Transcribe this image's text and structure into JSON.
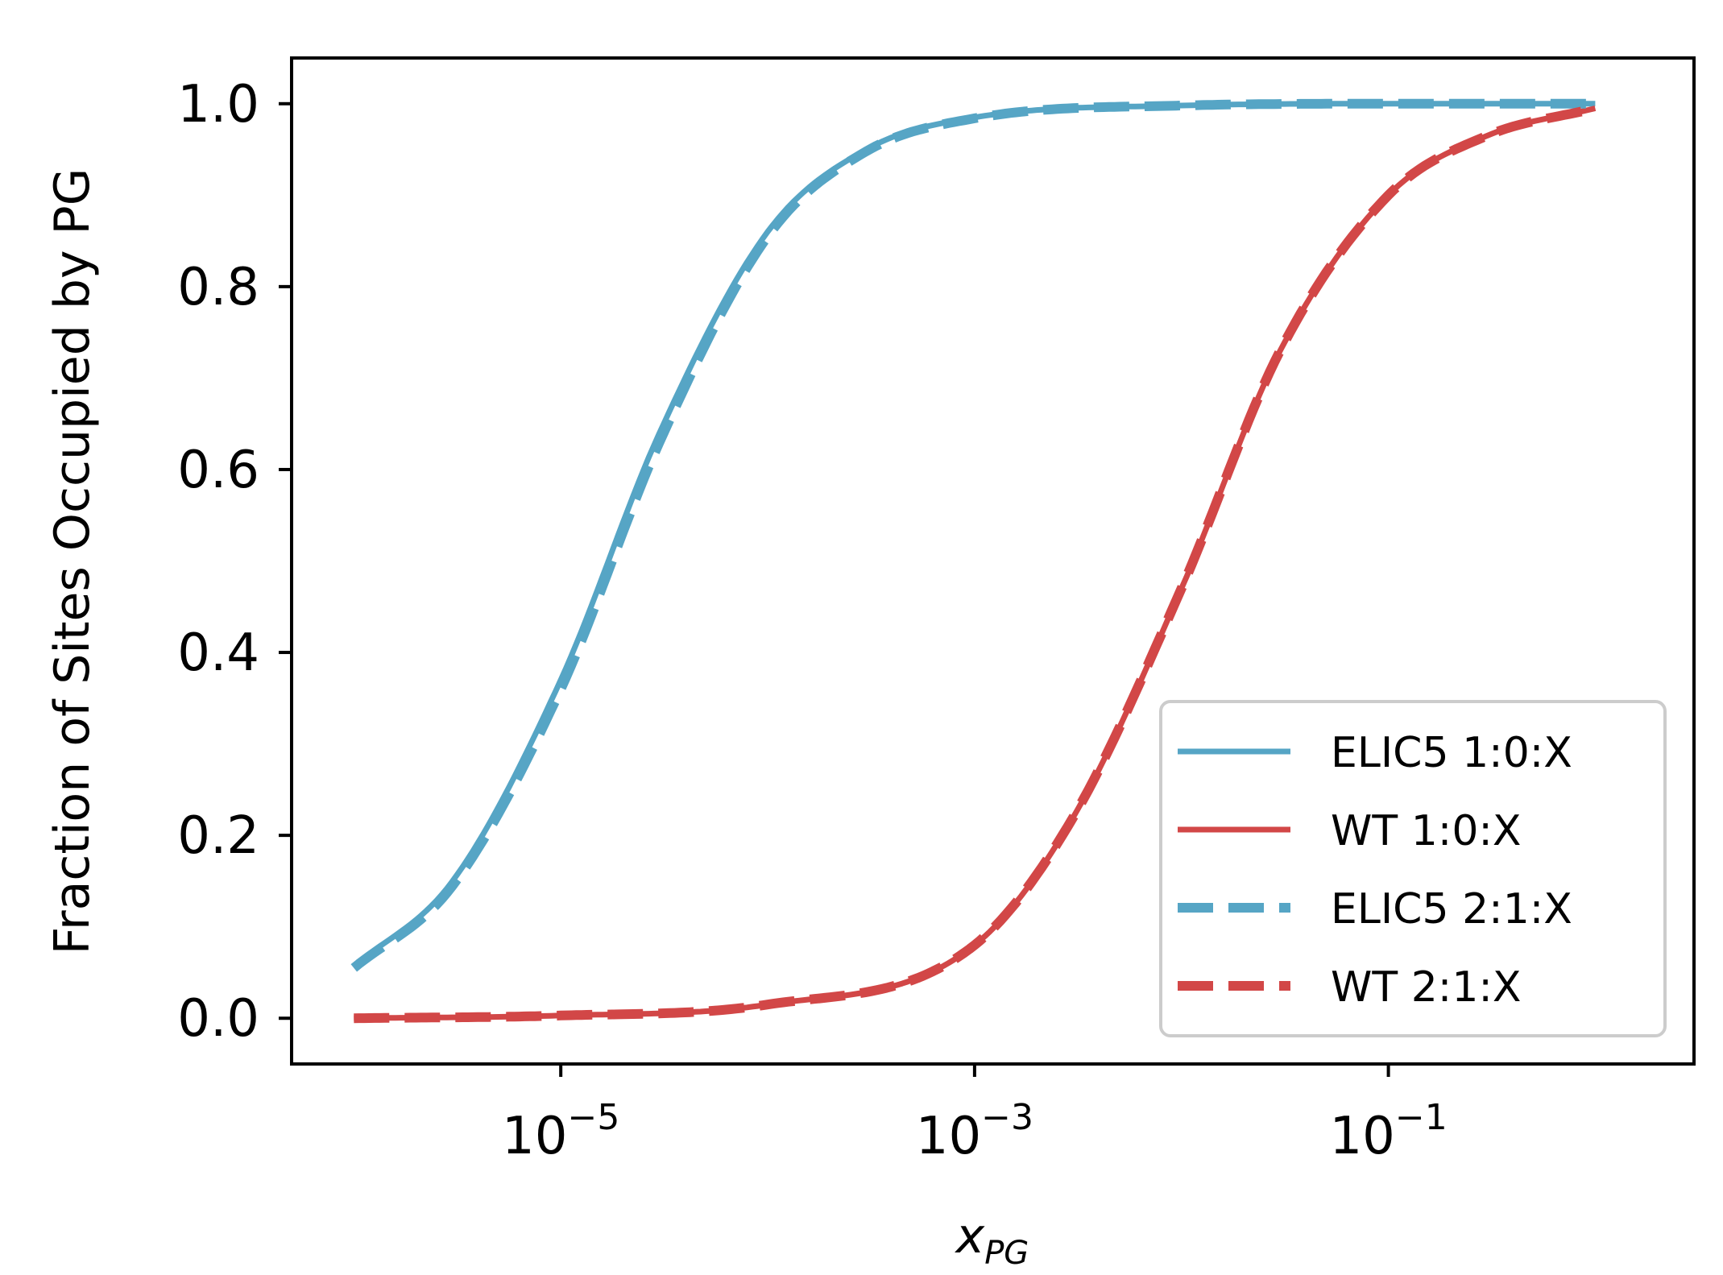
{
  "chart_data": {
    "type": "line",
    "title": "",
    "xlabel": "x",
    "xlabel_subscript": "PG",
    "ylabel": "Fraction of Sites Occupied by PG",
    "xscale": "log",
    "xlim": [
      5e-07,
      3.0
    ],
    "ylim": [
      -0.05,
      1.05
    ],
    "x_ticks": [
      {
        "value": 1e-05,
        "base": "10",
        "exp": "−5"
      },
      {
        "value": 0.001,
        "base": "10",
        "exp": "−3"
      },
      {
        "value": 0.1,
        "base": "10",
        "exp": "−1"
      }
    ],
    "y_ticks": [
      {
        "value": 0.0,
        "label": "0.0"
      },
      {
        "value": 0.2,
        "label": "0.2"
      },
      {
        "value": 0.4,
        "label": "0.4"
      },
      {
        "value": 0.6,
        "label": "0.6"
      },
      {
        "value": 0.8,
        "label": "0.8"
      },
      {
        "value": 1.0,
        "label": "1.0"
      }
    ],
    "grid": false,
    "legend_position": "lower-right",
    "x_range": [
      1e-06,
      1.0
    ],
    "series": [
      {
        "name": "ELIC5 1:0:X",
        "color": "#56a5c5",
        "style": "solid",
        "x": [
          1e-06,
          3e-06,
          1e-05,
          3e-05,
          0.0001,
          0.0003,
          0.001,
          0.01,
          0.1,
          1.0
        ],
        "y": [
          0.057,
          0.15,
          0.37,
          0.64,
          0.86,
          0.95,
          0.985,
          0.998,
          1.0,
          1.0
        ]
      },
      {
        "name": "WT 1:0:X",
        "color": "#d24747",
        "style": "solid",
        "x": [
          1e-06,
          1e-05,
          0.0001,
          0.001,
          0.003,
          0.01,
          0.03,
          0.1,
          0.3,
          1.0
        ],
        "y": [
          0.0,
          0.003,
          0.015,
          0.08,
          0.22,
          0.47,
          0.73,
          0.9,
          0.965,
          0.995
        ]
      },
      {
        "name": "ELIC5 2:1:X",
        "color": "#56a5c5",
        "style": "dashed",
        "x": [
          1e-06,
          3e-06,
          1e-05,
          3e-05,
          0.0001,
          0.0003,
          0.001,
          0.01,
          0.1,
          1.0
        ],
        "y": [
          0.055,
          0.145,
          0.36,
          0.63,
          0.855,
          0.948,
          0.984,
          0.998,
          1.0,
          1.0
        ]
      },
      {
        "name": "WT 2:1:X",
        "color": "#d24747",
        "style": "dashed",
        "x": [
          1e-06,
          1e-05,
          0.0001,
          0.001,
          0.003,
          0.01,
          0.03,
          0.1,
          0.3,
          1.0
        ],
        "y": [
          0.0,
          0.003,
          0.015,
          0.08,
          0.22,
          0.47,
          0.73,
          0.9,
          0.965,
          0.995
        ]
      }
    ]
  }
}
